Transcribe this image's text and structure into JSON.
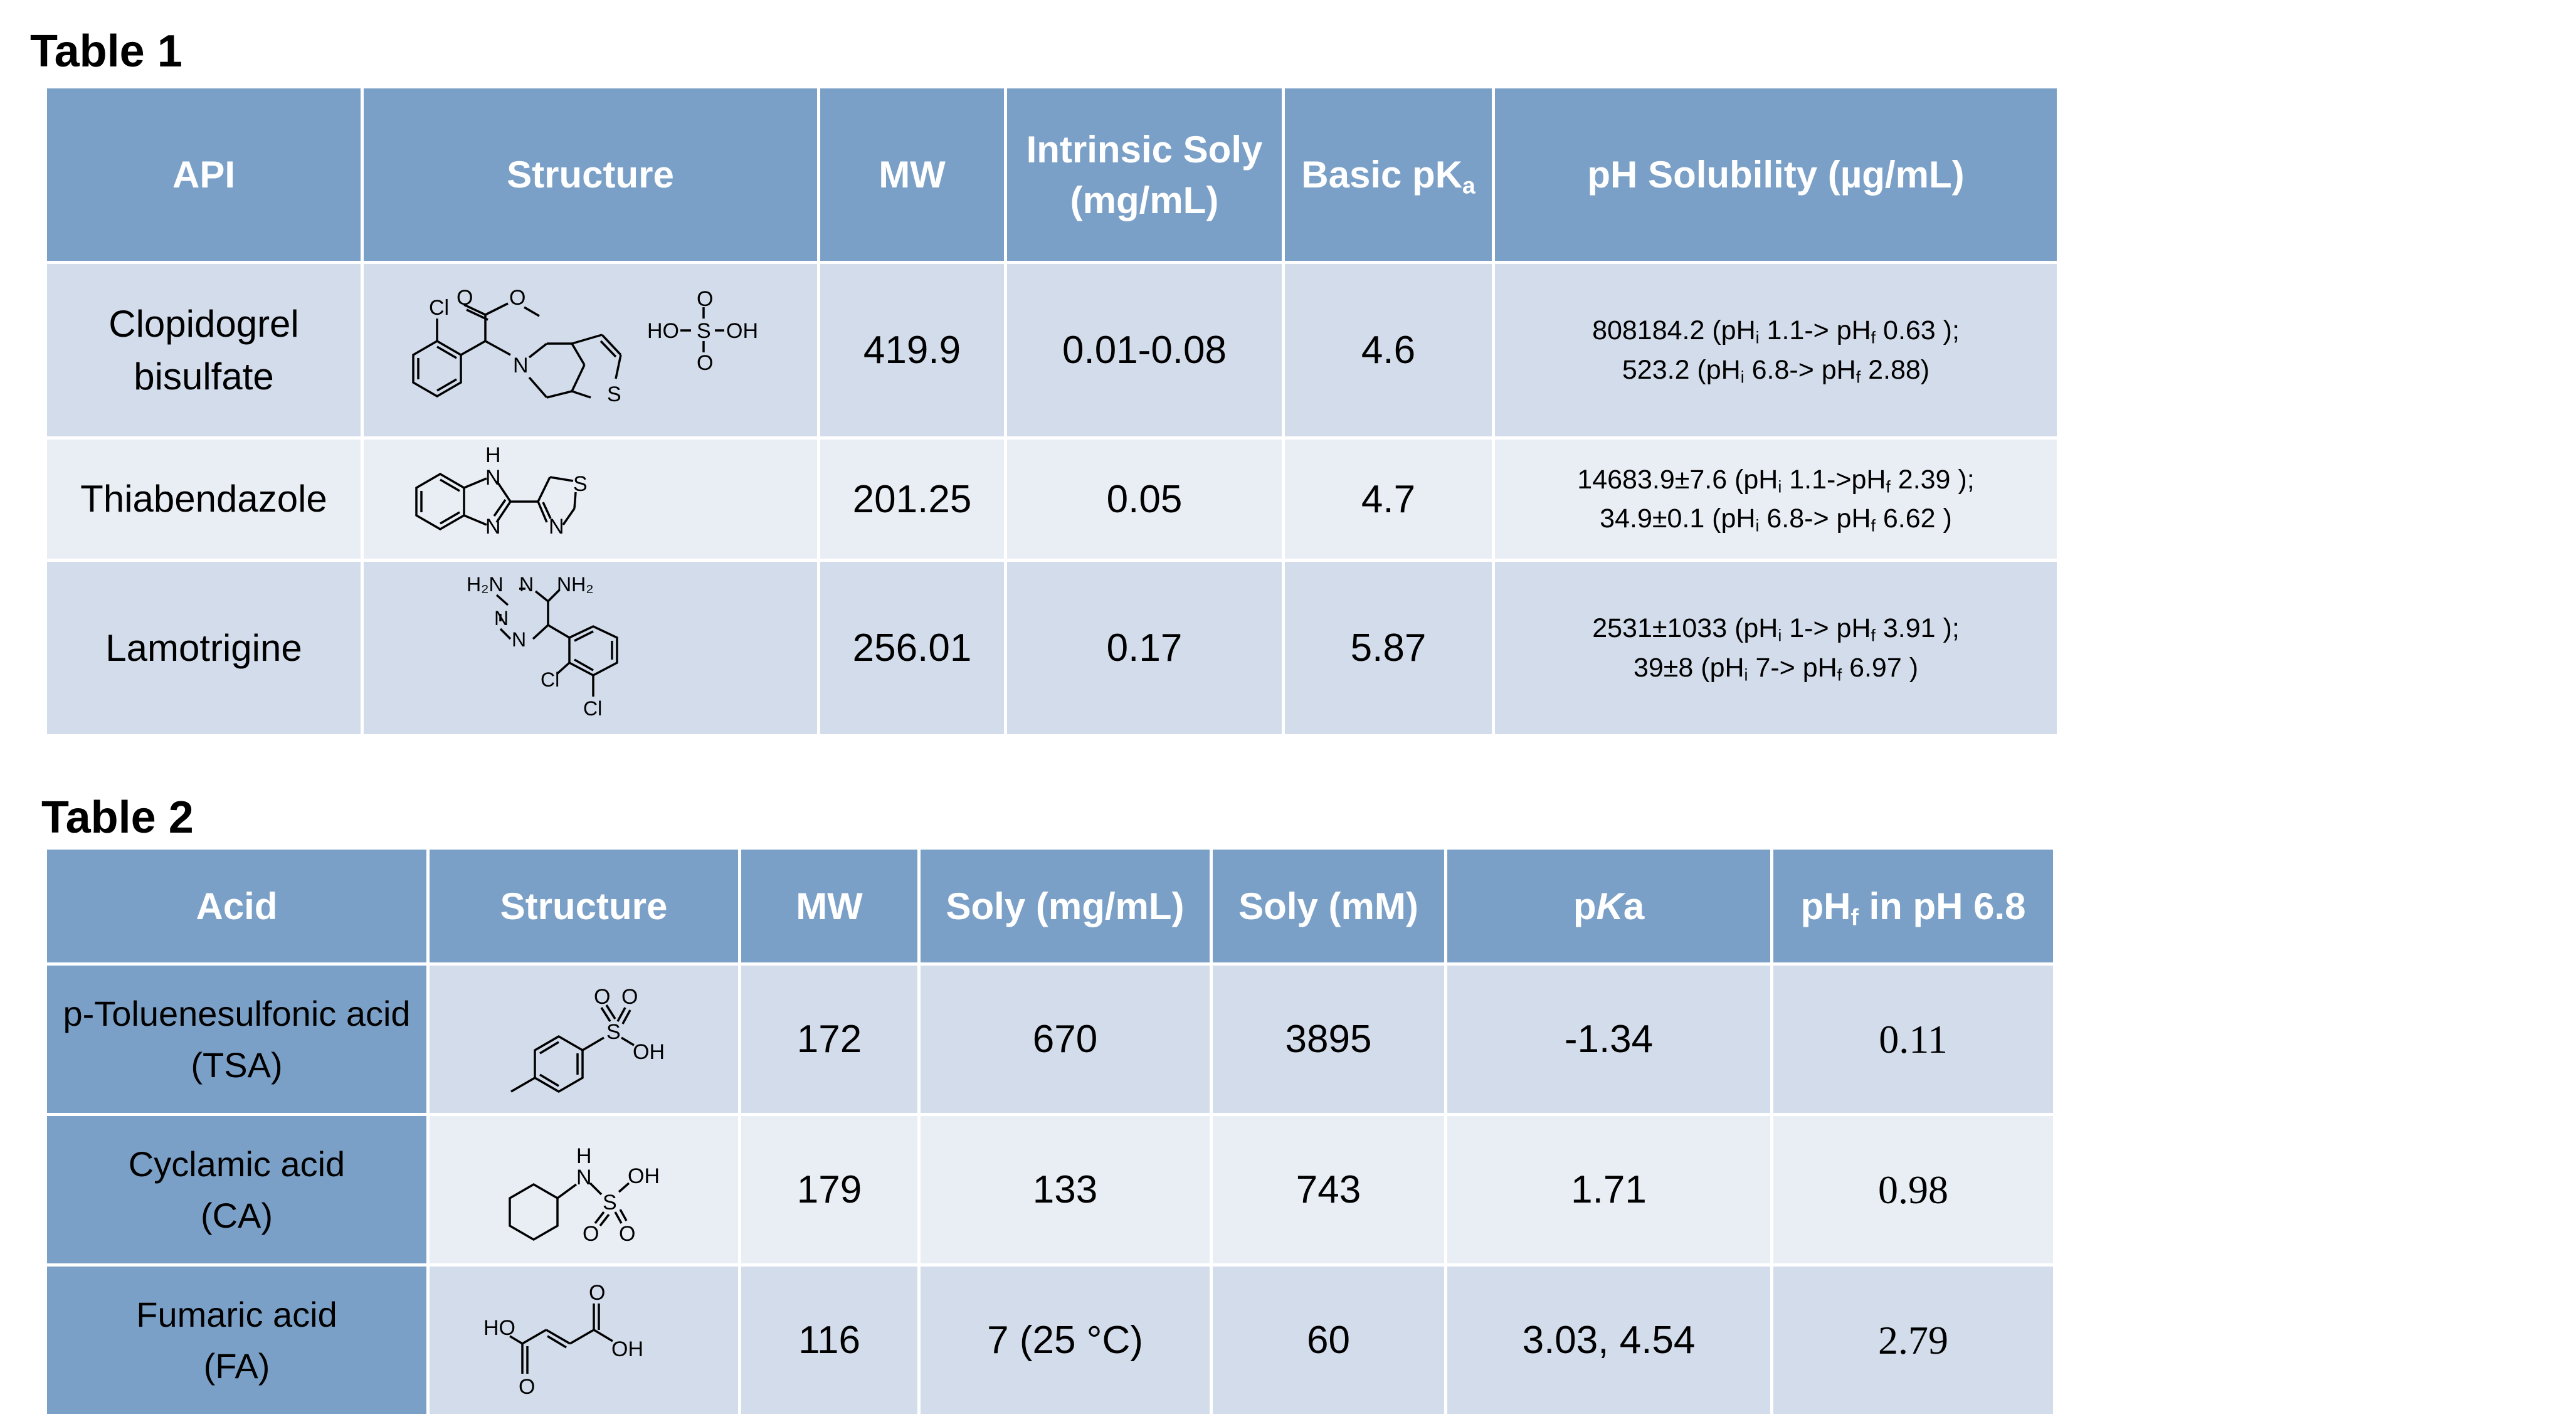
{
  "table1": {
    "caption": "Table 1",
    "headers": {
      "api": "API",
      "structure": "Structure",
      "mw": "MW",
      "intrinsic_line1": "Intrinsic Soly",
      "intrinsic_line2": "(mg/mL)",
      "basic_pka_main": "Basic pK",
      "basic_pka_sub": "a",
      "ph_solubility": "pH Solubility (µg/mL)"
    },
    "rows": [
      {
        "api_line1": "Clopidogrel",
        "api_line2": "bisulfate",
        "mw": "419.9",
        "intrinsic": "0.01-0.08",
        "pka": "4.6",
        "ph1": {
          "a": "808184.2 (pH",
          "b": "1.1-> pH",
          "c": "0.63 );"
        },
        "ph2": {
          "a": "523.2 (pH",
          "b": "6.8-> pH",
          "c": "2.88)"
        },
        "structure_labels": {
          "o1": "O",
          "o2": "O",
          "cl": "Cl",
          "n": "N",
          "s": "S",
          "hso3": "HO",
          "s_acid": "S",
          "oh": "OH",
          "o_top": "O",
          "o_bot": "O"
        }
      },
      {
        "api_line1": "Thiabendazole",
        "mw": "201.25",
        "intrinsic": "0.05",
        "pka": "4.7",
        "ph1": {
          "a": "14683.9±7.6 (pH",
          "b": "1.1->pH",
          "c": "2.39 );"
        },
        "ph2": {
          "a": "34.9±0.1 (pH",
          "b": "6.8-> pH",
          "c": "6.62 )"
        },
        "structure_labels": {
          "h": "H",
          "n1": "N",
          "n2": "N",
          "n3": "N",
          "s": "S"
        }
      },
      {
        "api_line1": "Lamotrigine",
        "mw": "256.01",
        "intrinsic": "0.17",
        "pka": "5.87",
        "ph1": {
          "a": "2531±1033 (pH",
          "b": "1-> pH",
          "c": "3.91 );"
        },
        "ph2": {
          "a": "39±8 (pH",
          "b": "7-> pH",
          "c": "6.97 )"
        },
        "structure_labels": {
          "h2n": "H₂N",
          "nh2": "NH₂",
          "n1": "N",
          "n2": "N",
          "n3": "N",
          "cl1": "Cl",
          "cl2": "Cl"
        }
      }
    ],
    "sub_i": "i",
    "sub_f": "f"
  },
  "table2": {
    "caption": "Table 2",
    "headers": {
      "acid": "Acid",
      "structure": "Structure",
      "mw": "MW",
      "soly_mg": "Soly (mg/mL)",
      "soly_mm": "Soly (mM)",
      "pka_p": "p",
      "pka_k": "K",
      "pka_a": "a",
      "phf_main": "pH",
      "phf_sub": "f",
      "phf_rest": " in pH 6.8"
    },
    "rows": [
      {
        "acid_line1": "p-Toluenesulfonic acid",
        "acid_line2": "(TSA)",
        "mw": "172",
        "soly_mg": "670",
        "soly_mm": "3895",
        "pka": "-1.34",
        "phf": "0.11",
        "structure_labels": {
          "o1": "O",
          "o2": "O",
          "s": "S",
          "oh": "OH"
        }
      },
      {
        "acid_line1": "Cyclamic acid",
        "acid_line2": "(CA)",
        "mw": "179",
        "soly_mg": "133",
        "soly_mm": "743",
        "pka": "1.71",
        "phf": "0.98",
        "structure_labels": {
          "h": "H",
          "n": "N",
          "s": "S",
          "oh": "OH",
          "o1": "O",
          "o2": "O"
        }
      },
      {
        "acid_line1": "Fumaric acid",
        "acid_line2": "(FA)",
        "mw": "116",
        "soly_mg": "7 (25 °C)",
        "soly_mm": "60",
        "pka": "3.03, 4.54",
        "phf": "2.79",
        "structure_labels": {
          "ho": "HO",
          "o1": "O",
          "o2": "O",
          "oh": "OH"
        }
      }
    ]
  },
  "colors": {
    "header_fill": "#7ba0c7",
    "row_dark": "#d2dcea",
    "row_light": "#e9eef5",
    "header_text": "#ffffff"
  }
}
